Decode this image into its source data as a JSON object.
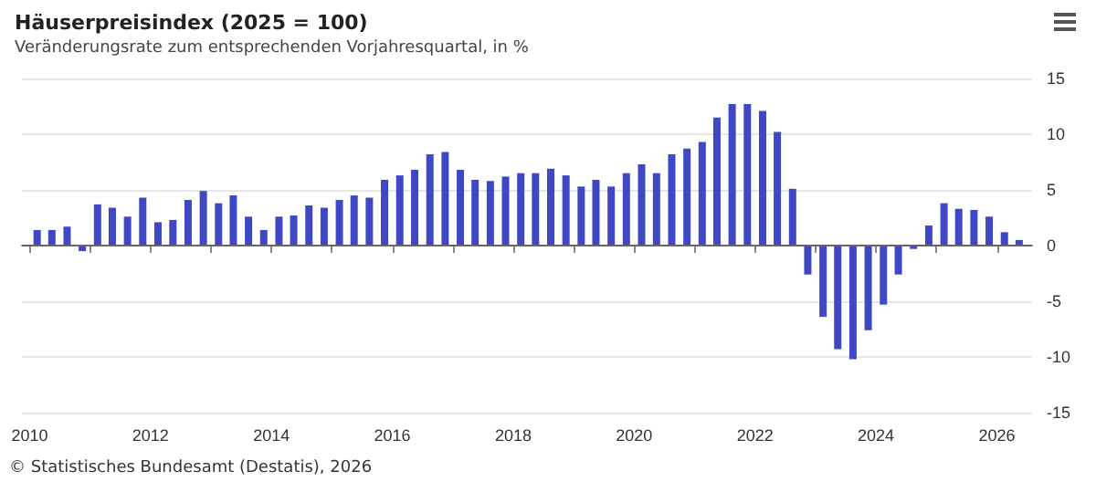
{
  "chart_data": {
    "type": "bar",
    "title": "Häuserpreisindex (2025 = 100)",
    "subtitle": "Veränderungsrate zum entsprechenden Vorjahresquartal, in %",
    "annotations": [
      "© Statistisches Bundesamt (Destatis), 2026"
    ],
    "x": [
      "2010-02-15",
      "2010-05-15",
      "2010-08-15",
      "2010-11-15",
      "2011-02-15",
      "2011-05-15",
      "2011-08-15",
      "2011-11-15",
      "2012-02-15",
      "2012-05-15",
      "2012-08-15",
      "2012-11-15",
      "2013-02-15",
      "2013-05-15",
      "2013-08-15",
      "2013-11-15",
      "2014-02-15",
      "2014-05-15",
      "2014-08-15",
      "2014-11-15",
      "2015-02-15",
      "2015-05-15",
      "2015-08-15",
      "2015-11-15",
      "2016-02-15",
      "2016-05-15",
      "2016-08-15",
      "2016-11-15",
      "2017-02-15",
      "2017-05-15",
      "2017-08-15",
      "2017-11-15",
      "2018-02-15",
      "2018-05-15",
      "2018-08-15",
      "2018-11-15",
      "2019-02-15",
      "2019-05-15",
      "2019-08-15",
      "2019-11-15",
      "2020-02-15",
      "2020-05-15",
      "2020-08-15",
      "2020-11-15",
      "2021-02-15",
      "2021-05-15",
      "2021-08-15",
      "2021-11-15",
      "2022-02-15",
      "2022-05-15",
      "2022-08-15",
      "2022-11-15",
      "2023-02-15",
      "2023-05-15",
      "2023-08-15",
      "2023-11-15",
      "2024-02-15",
      "2024-05-15",
      "2024-08-15",
      "2024-11-15",
      "2025-02-15",
      "2025-05-15",
      "2025-08-15",
      "2025-11-15",
      "2026-02-15",
      "2026-05-15"
    ],
    "values": [
      1.4,
      1.4,
      1.7,
      -0.5,
      3.7,
      3.4,
      2.6,
      4.3,
      2.1,
      2.3,
      4.1,
      4.9,
      3.8,
      4.5,
      2.6,
      1.4,
      2.6,
      2.7,
      3.6,
      3.4,
      4.1,
      4.5,
      4.3,
      5.9,
      6.3,
      6.8,
      8.2,
      8.4,
      6.8,
      5.9,
      5.8,
      6.2,
      6.5,
      6.5,
      6.9,
      6.3,
      5.3,
      5.9,
      5.3,
      6.5,
      7.3,
      6.5,
      8.2,
      8.7,
      9.3,
      11.5,
      12.7,
      12.7,
      12.1,
      10.2,
      5.1,
      -2.6,
      -6.4,
      -9.3,
      -10.2,
      -7.6,
      -5.3,
      -2.6,
      -0.3,
      1.8,
      3.8,
      3.3,
      3.2,
      2.6,
      1.2,
      0.5
    ],
    "color": "#3f48c4",
    "xlim": [
      "2009-11-15",
      "2026-08-01"
    ],
    "xticks": [
      {
        "value": "2010",
        "label": "2010"
      },
      {
        "value": "2011",
        "label": null
      },
      {
        "value": "2012",
        "label": "2012"
      },
      {
        "value": "2013",
        "label": null
      },
      {
        "value": "2014",
        "label": "2014"
      },
      {
        "value": "2015",
        "label": null
      },
      {
        "value": "2016",
        "label": "2016"
      },
      {
        "value": "2017",
        "label": null
      },
      {
        "value": "2018",
        "label": "2018"
      },
      {
        "value": "2019",
        "label": null
      },
      {
        "value": "2020",
        "label": "2020"
      },
      {
        "value": "2021",
        "label": null
      },
      {
        "value": "2022",
        "label": "2022"
      },
      {
        "value": "2023",
        "label": null
      },
      {
        "value": "2024",
        "label": "2024"
      },
      {
        "value": "2025",
        "label": null
      },
      {
        "value": "2026",
        "label": "2026"
      }
    ],
    "ylim": [
      -15,
      15
    ],
    "yticks": [
      -15,
      -10,
      -5,
      0,
      5,
      10,
      15
    ],
    "grid": "y"
  }
}
